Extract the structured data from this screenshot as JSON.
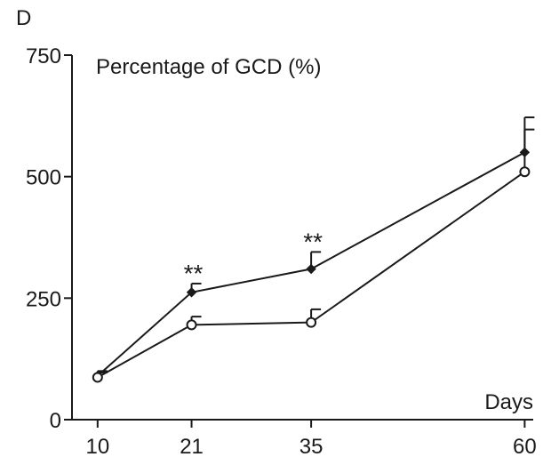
{
  "figure": {
    "panel_letter": "D",
    "title": "Percentage of GCD (%)",
    "x_unit": "Days"
  },
  "chart_data": {
    "type": "line",
    "title": "Percentage of GCD (%)",
    "xlabel": "Days",
    "ylabel": "",
    "xlim": [
      7,
      61
    ],
    "ylim": [
      0,
      750
    ],
    "x": [
      10,
      21,
      35,
      60
    ],
    "xticks": [
      10,
      21,
      35,
      60
    ],
    "xtick_labels": [
      "10",
      "21",
      "35",
      "60"
    ],
    "yticks": [
      0,
      250,
      500,
      750
    ],
    "ytick_labels": [
      "0",
      "250",
      "500",
      "750"
    ],
    "grid": false,
    "series": [
      {
        "marker": "filled-diamond",
        "values": [
          90,
          262,
          310,
          550
        ],
        "error_upper": [
          100,
          280,
          345,
          622
        ]
      },
      {
        "marker": "open-circle",
        "values": [
          87,
          195,
          200,
          510
        ],
        "error_upper": [
          97,
          212,
          227,
          597
        ]
      }
    ],
    "annotations": [
      {
        "text": "**",
        "x": 21
      },
      {
        "text": "**",
        "x": 35
      }
    ]
  }
}
